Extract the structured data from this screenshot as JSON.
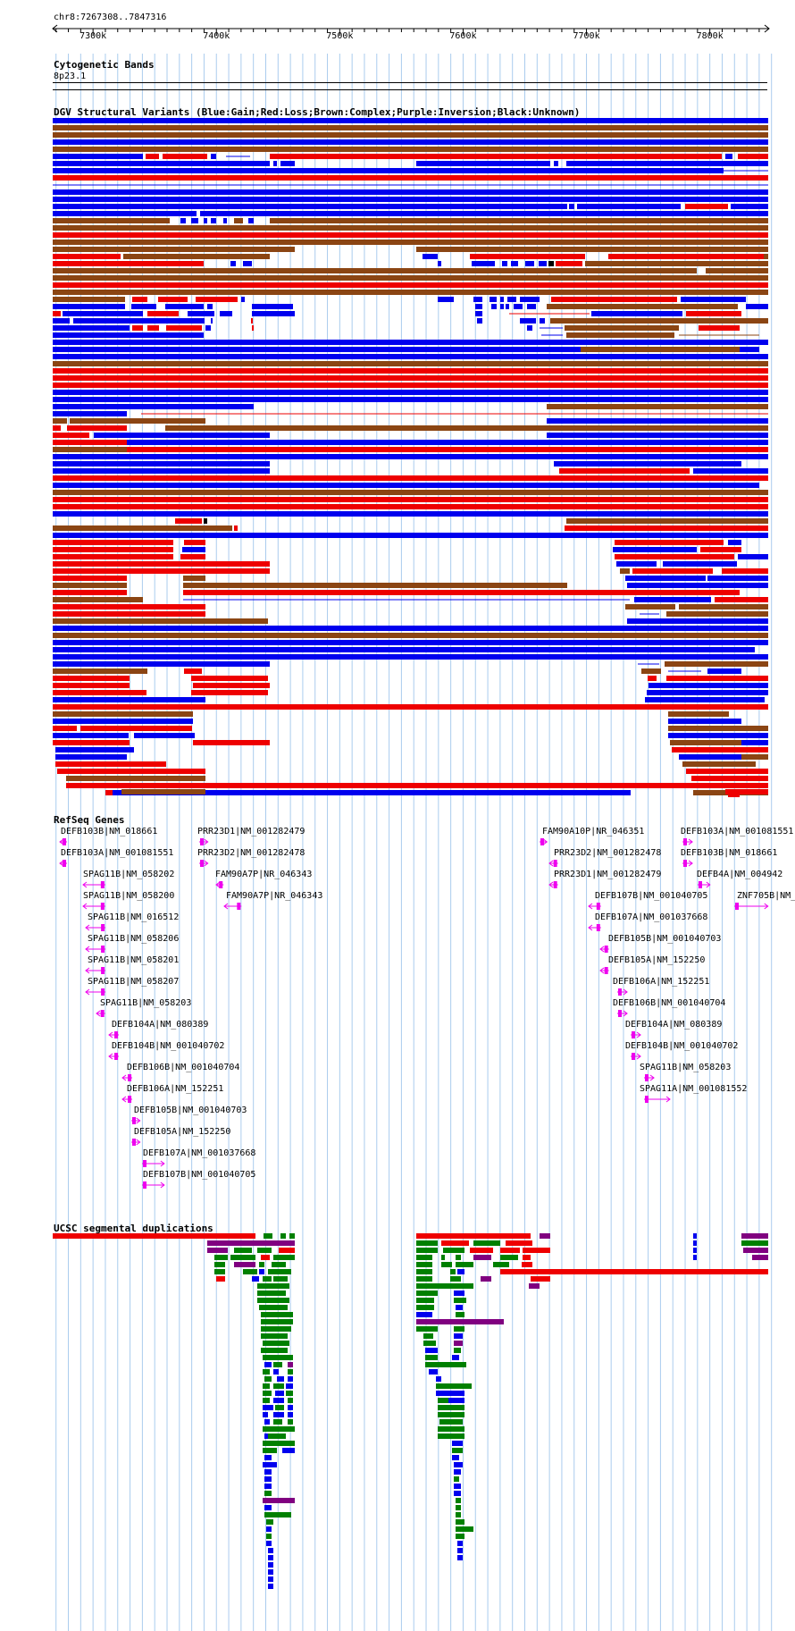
{
  "range": {
    "label": "chr8:7267308..7847316",
    "start": 7267308,
    "end": 7847316
  },
  "ruler": {
    "ticks": [
      {
        "pos": 7300000,
        "label": "7300k"
      },
      {
        "pos": 7400000,
        "label": "7400k"
      },
      {
        "pos": 7500000,
        "label": "7500k"
      },
      {
        "pos": 7600000,
        "label": "7600k"
      },
      {
        "pos": 7700000,
        "label": "7700k"
      },
      {
        "pos": 7800000,
        "label": "7800k"
      }
    ]
  },
  "cytoband": {
    "title": "Cytogenetic Bands",
    "band": "8p23.1"
  },
  "dgv": {
    "title": "DGV Structural Variants (Blue:Gain;Red:Loss;Brown:Complex;Purple:Inversion;Black:Unknown)"
  },
  "colors": {
    "gain": "#0000ee",
    "loss": "#ee0000",
    "complex": "#8b4513",
    "inversion": "#800080",
    "unknown": "#000000",
    "gene": "#ee00ee",
    "segdup_red": "#ee0000",
    "segdup_green": "#008000",
    "segdup_blue": "#0000ee",
    "segdup_purple": "#800080",
    "grid": "#aaccee"
  },
  "refseq": {
    "title": "RefSeq Genes",
    "genes": [
      {
        "name": "DEFB103B|NM_018661",
        "start": 7273000,
        "end": 7275000,
        "strand": "-"
      },
      {
        "name": "DEFB103A|NM_001081551",
        "start": 7273000,
        "end": 7276000,
        "strand": "-"
      },
      {
        "name": "SPAG11B|NM_058202",
        "start": 7292000,
        "end": 7310000,
        "strand": "-"
      },
      {
        "name": "SPAG11B|NM_058200",
        "start": 7292000,
        "end": 7310000,
        "strand": "-"
      },
      {
        "name": "SPAG11B|NM_016512",
        "start": 7294000,
        "end": 7310000,
        "strand": "-"
      },
      {
        "name": "SPAG11B|NM_058206",
        "start": 7294000,
        "end": 7310000,
        "strand": "-"
      },
      {
        "name": "SPAG11B|NM_058201",
        "start": 7294000,
        "end": 7310000,
        "strand": "-"
      },
      {
        "name": "SPAG11B|NM_058207",
        "start": 7294000,
        "end": 7310000,
        "strand": "-"
      },
      {
        "name": "SPAG11B|NM_058203",
        "start": 7303000,
        "end": 7310000,
        "strand": "-"
      },
      {
        "name": "DEFB104A|NM_080389",
        "start": 7313000,
        "end": 7321000,
        "strand": "-"
      },
      {
        "name": "DEFB104B|NM_001040702",
        "start": 7313000,
        "end": 7321000,
        "strand": "-"
      },
      {
        "name": "DEFB106B|NM_001040704",
        "start": 7324000,
        "end": 7332000,
        "strand": "-"
      },
      {
        "name": "DEFB106A|NM_152251",
        "start": 7324000,
        "end": 7332000,
        "strand": "-"
      },
      {
        "name": "DEFB105B|NM_001040703",
        "start": 7331000,
        "end": 7338000,
        "strand": "+"
      },
      {
        "name": "DEFB105A|NM_152250",
        "start": 7331000,
        "end": 7338000,
        "strand": "+"
      },
      {
        "name": "DEFB107A|NM_001037668",
        "start": 7340000,
        "end": 7358000,
        "strand": "+"
      },
      {
        "name": "DEFB107B|NM_001040705",
        "start": 7340000,
        "end": 7358000,
        "strand": "+"
      },
      {
        "name": "PRR23D1|NM_001282479",
        "start": 7386000,
        "end": 7393000,
        "strand": "+"
      },
      {
        "name": "PRR23D2|NM_001282478",
        "start": 7386000,
        "end": 7393000,
        "strand": "+"
      },
      {
        "name": "FAM90A7P|NR_046343",
        "start": 7400000,
        "end": 7406000,
        "strand": "-"
      },
      {
        "name": "FAM90A7P|NR_046343",
        "start": 7406000,
        "end": 7420000,
        "strand": "-"
      },
      {
        "name": "FAM90A10P|NR_046351",
        "start": 7662000,
        "end": 7668000,
        "strand": "+"
      },
      {
        "name": "PRR23D2|NM_001282478",
        "start": 7670000,
        "end": 7677000,
        "strand": "-"
      },
      {
        "name": "PRR23D1|NM_001282479",
        "start": 7670000,
        "end": 7677000,
        "strand": "-"
      },
      {
        "name": "DEFB107B|NM_001040705",
        "start": 7702000,
        "end": 7712000,
        "strand": "-"
      },
      {
        "name": "DEFB107A|NM_001037668",
        "start": 7702000,
        "end": 7712000,
        "strand": "-"
      },
      {
        "name": "DEFB105B|NM_001040703",
        "start": 7711000,
        "end": 7718000,
        "strand": "-"
      },
      {
        "name": "DEFB105A|NM_152250",
        "start": 7711000,
        "end": 7718000,
        "strand": "-"
      },
      {
        "name": "DEFB106A|NM_152251",
        "start": 7725000,
        "end": 7733000,
        "strand": "+"
      },
      {
        "name": "DEFB106B|NM_001040704",
        "start": 7725000,
        "end": 7733000,
        "strand": "+"
      },
      {
        "name": "DEFB104A|NM_080389",
        "start": 7736000,
        "end": 7744000,
        "strand": "+"
      },
      {
        "name": "DEFB104B|NM_001040702",
        "start": 7736000,
        "end": 7744000,
        "strand": "+"
      },
      {
        "name": "SPAG11B|NM_058203",
        "start": 7747000,
        "end": 7755000,
        "strand": "+"
      },
      {
        "name": "SPAG11A|NM_001081552",
        "start": 7747000,
        "end": 7768000,
        "strand": "+"
      },
      {
        "name": "DEFB103A|NM_001081551",
        "start": 7778000,
        "end": 7786000,
        "strand": "+"
      },
      {
        "name": "DEFB103B|NM_018661",
        "start": 7778000,
        "end": 7786000,
        "strand": "+"
      },
      {
        "name": "DEFB4A|NM_004942",
        "start": 7790000,
        "end": 7800000,
        "strand": "+"
      },
      {
        "name": "ZNF705B|NM_",
        "start": 7820000,
        "end": 7847316,
        "strand": "+"
      }
    ]
  },
  "segdup": {
    "title": "UCSC segmental duplications"
  }
}
